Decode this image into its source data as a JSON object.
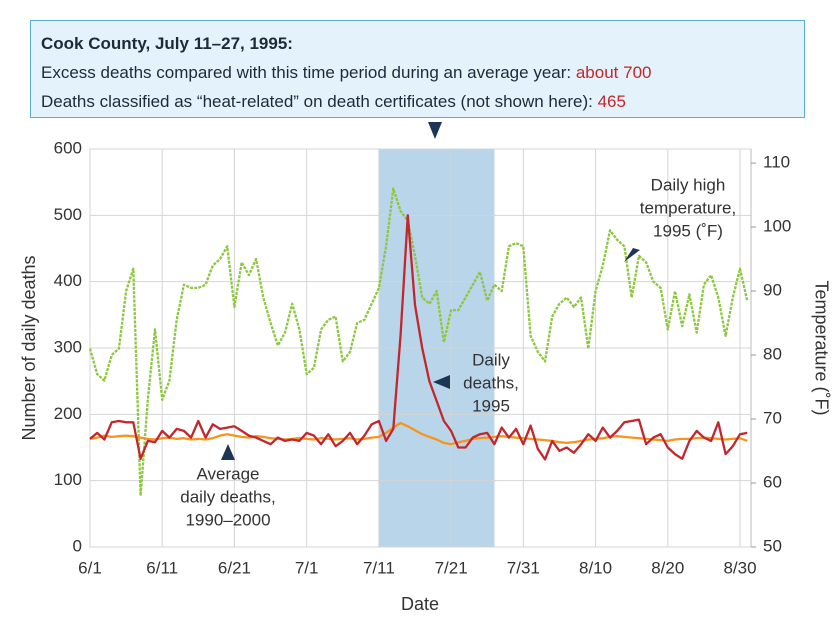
{
  "chart_data": {
    "type": "line",
    "callout": {
      "title": "Cook County, July 11–27, 1995:",
      "lines": [
        {
          "text": "Excess deaths compared with this time period during an average year: ",
          "highlight": "about 700"
        },
        {
          "text": "Deaths classified as “heat-related” on death certificates (not shown here): ",
          "highlight": "465"
        }
      ]
    },
    "x_label": "Date",
    "y_label": "Number of daily deaths",
    "y2_label": "Temperature (˚F)",
    "categories": [
      "6/1",
      null,
      null,
      null,
      null,
      null,
      null,
      null,
      null,
      null,
      "6/11",
      null,
      null,
      null,
      null,
      null,
      null,
      null,
      null,
      null,
      "6/21",
      null,
      null,
      null,
      null,
      null,
      null,
      null,
      null,
      null,
      "7/1",
      null,
      null,
      null,
      null,
      null,
      null,
      null,
      null,
      null,
      "7/11",
      null,
      null,
      null,
      null,
      null,
      null,
      null,
      null,
      null,
      "7/21",
      null,
      null,
      null,
      null,
      null,
      null,
      null,
      null,
      null,
      "7/31",
      null,
      null,
      null,
      null,
      null,
      null,
      null,
      null,
      null,
      "8/10",
      null,
      null,
      null,
      null,
      null,
      null,
      null,
      null,
      null,
      "8/20",
      null,
      null,
      null,
      null,
      null,
      null,
      null,
      null,
      null,
      "8/30",
      null
    ],
    "shaded_span": {
      "start": 40,
      "end": 56,
      "color": "#b9d5ea"
    },
    "ylim": [
      0,
      600
    ],
    "yticks": [
      0,
      100,
      200,
      300,
      400,
      500,
      600
    ],
    "y2lim": [
      50,
      112.2
    ],
    "y2ticks": [
      50,
      60,
      70,
      80,
      90,
      100,
      110
    ],
    "grid": true,
    "series": [
      {
        "label_lines": [
          "Daily high",
          "temperature,",
          "1995 (˚F)"
        ],
        "color": "#8dc63f",
        "axis": "y2",
        "dashed": true,
        "values": [
          81,
          77,
          76,
          80,
          81,
          90,
          93.5,
          58,
          73,
          84,
          73,
          76,
          85.5,
          91,
          90.5,
          90.5,
          91,
          94,
          95,
          97,
          87.5,
          94.5,
          92.5,
          95,
          89,
          85,
          81.5,
          83.5,
          88,
          84,
          77,
          78,
          84,
          85.5,
          86,
          79,
          80.5,
          85,
          85.5,
          88,
          90.5,
          97,
          106,
          102.5,
          101,
          95.5,
          89,
          88,
          90,
          82,
          87,
          87,
          89,
          91,
          93,
          88.5,
          91,
          90,
          97,
          97.5,
          97,
          83,
          80.5,
          79,
          86,
          88,
          89,
          87.5,
          89,
          81,
          90,
          94,
          99.5,
          98,
          97,
          89,
          95.5,
          94.5,
          91.5,
          90.5,
          84,
          90,
          84.5,
          89.5,
          83.5,
          91,
          92.5,
          89,
          83,
          89,
          93.5,
          88.5
        ]
      },
      {
        "label_lines": [
          "Daily",
          "deaths,",
          "1995"
        ],
        "color": "#c1272d",
        "values": [
          163,
          172,
          162,
          188,
          190,
          188,
          188,
          133,
          160,
          158,
          175,
          165,
          178,
          175,
          165,
          190,
          165,
          185,
          178,
          180,
          182,
          175,
          168,
          165,
          160,
          155,
          165,
          160,
          162,
          160,
          172,
          168,
          155,
          170,
          152,
          160,
          172,
          155,
          168,
          185,
          190,
          160,
          178,
          320,
          500,
          365,
          300,
          250,
          220,
          190,
          175,
          150,
          150,
          165,
          170,
          172,
          155,
          180,
          165,
          178,
          155,
          183,
          148,
          132,
          160,
          145,
          150,
          142,
          155,
          170,
          160,
          180,
          165,
          175,
          188,
          190,
          192,
          155,
          165,
          170,
          150,
          140,
          133,
          160,
          175,
          165,
          160,
          188,
          140,
          152,
          170,
          172
        ]
      },
      {
        "label_lines": [
          "Average",
          "daily deaths,",
          "1990–2000"
        ],
        "color": "#f7941d",
        "values": [
          163,
          165,
          168,
          166,
          167,
          168,
          167,
          165,
          163,
          162,
          164,
          165,
          163,
          164,
          162,
          163,
          162,
          164,
          168,
          170,
          168,
          166,
          165,
          167,
          166,
          164,
          163,
          162,
          163,
          164,
          163,
          162,
          164,
          163,
          162,
          163,
          164,
          162,
          163,
          165,
          166,
          172,
          180,
          187,
          182,
          176,
          170,
          166,
          162,
          157,
          155,
          158,
          160,
          163,
          164,
          165,
          166,
          167,
          166,
          165,
          164,
          163,
          162,
          161,
          160,
          158,
          157,
          158,
          160,
          162,
          163,
          164,
          166,
          167,
          166,
          165,
          164,
          163,
          162,
          161,
          160,
          162,
          163,
          163,
          164,
          165,
          164,
          163,
          162,
          163,
          164,
          160
        ]
      }
    ]
  }
}
